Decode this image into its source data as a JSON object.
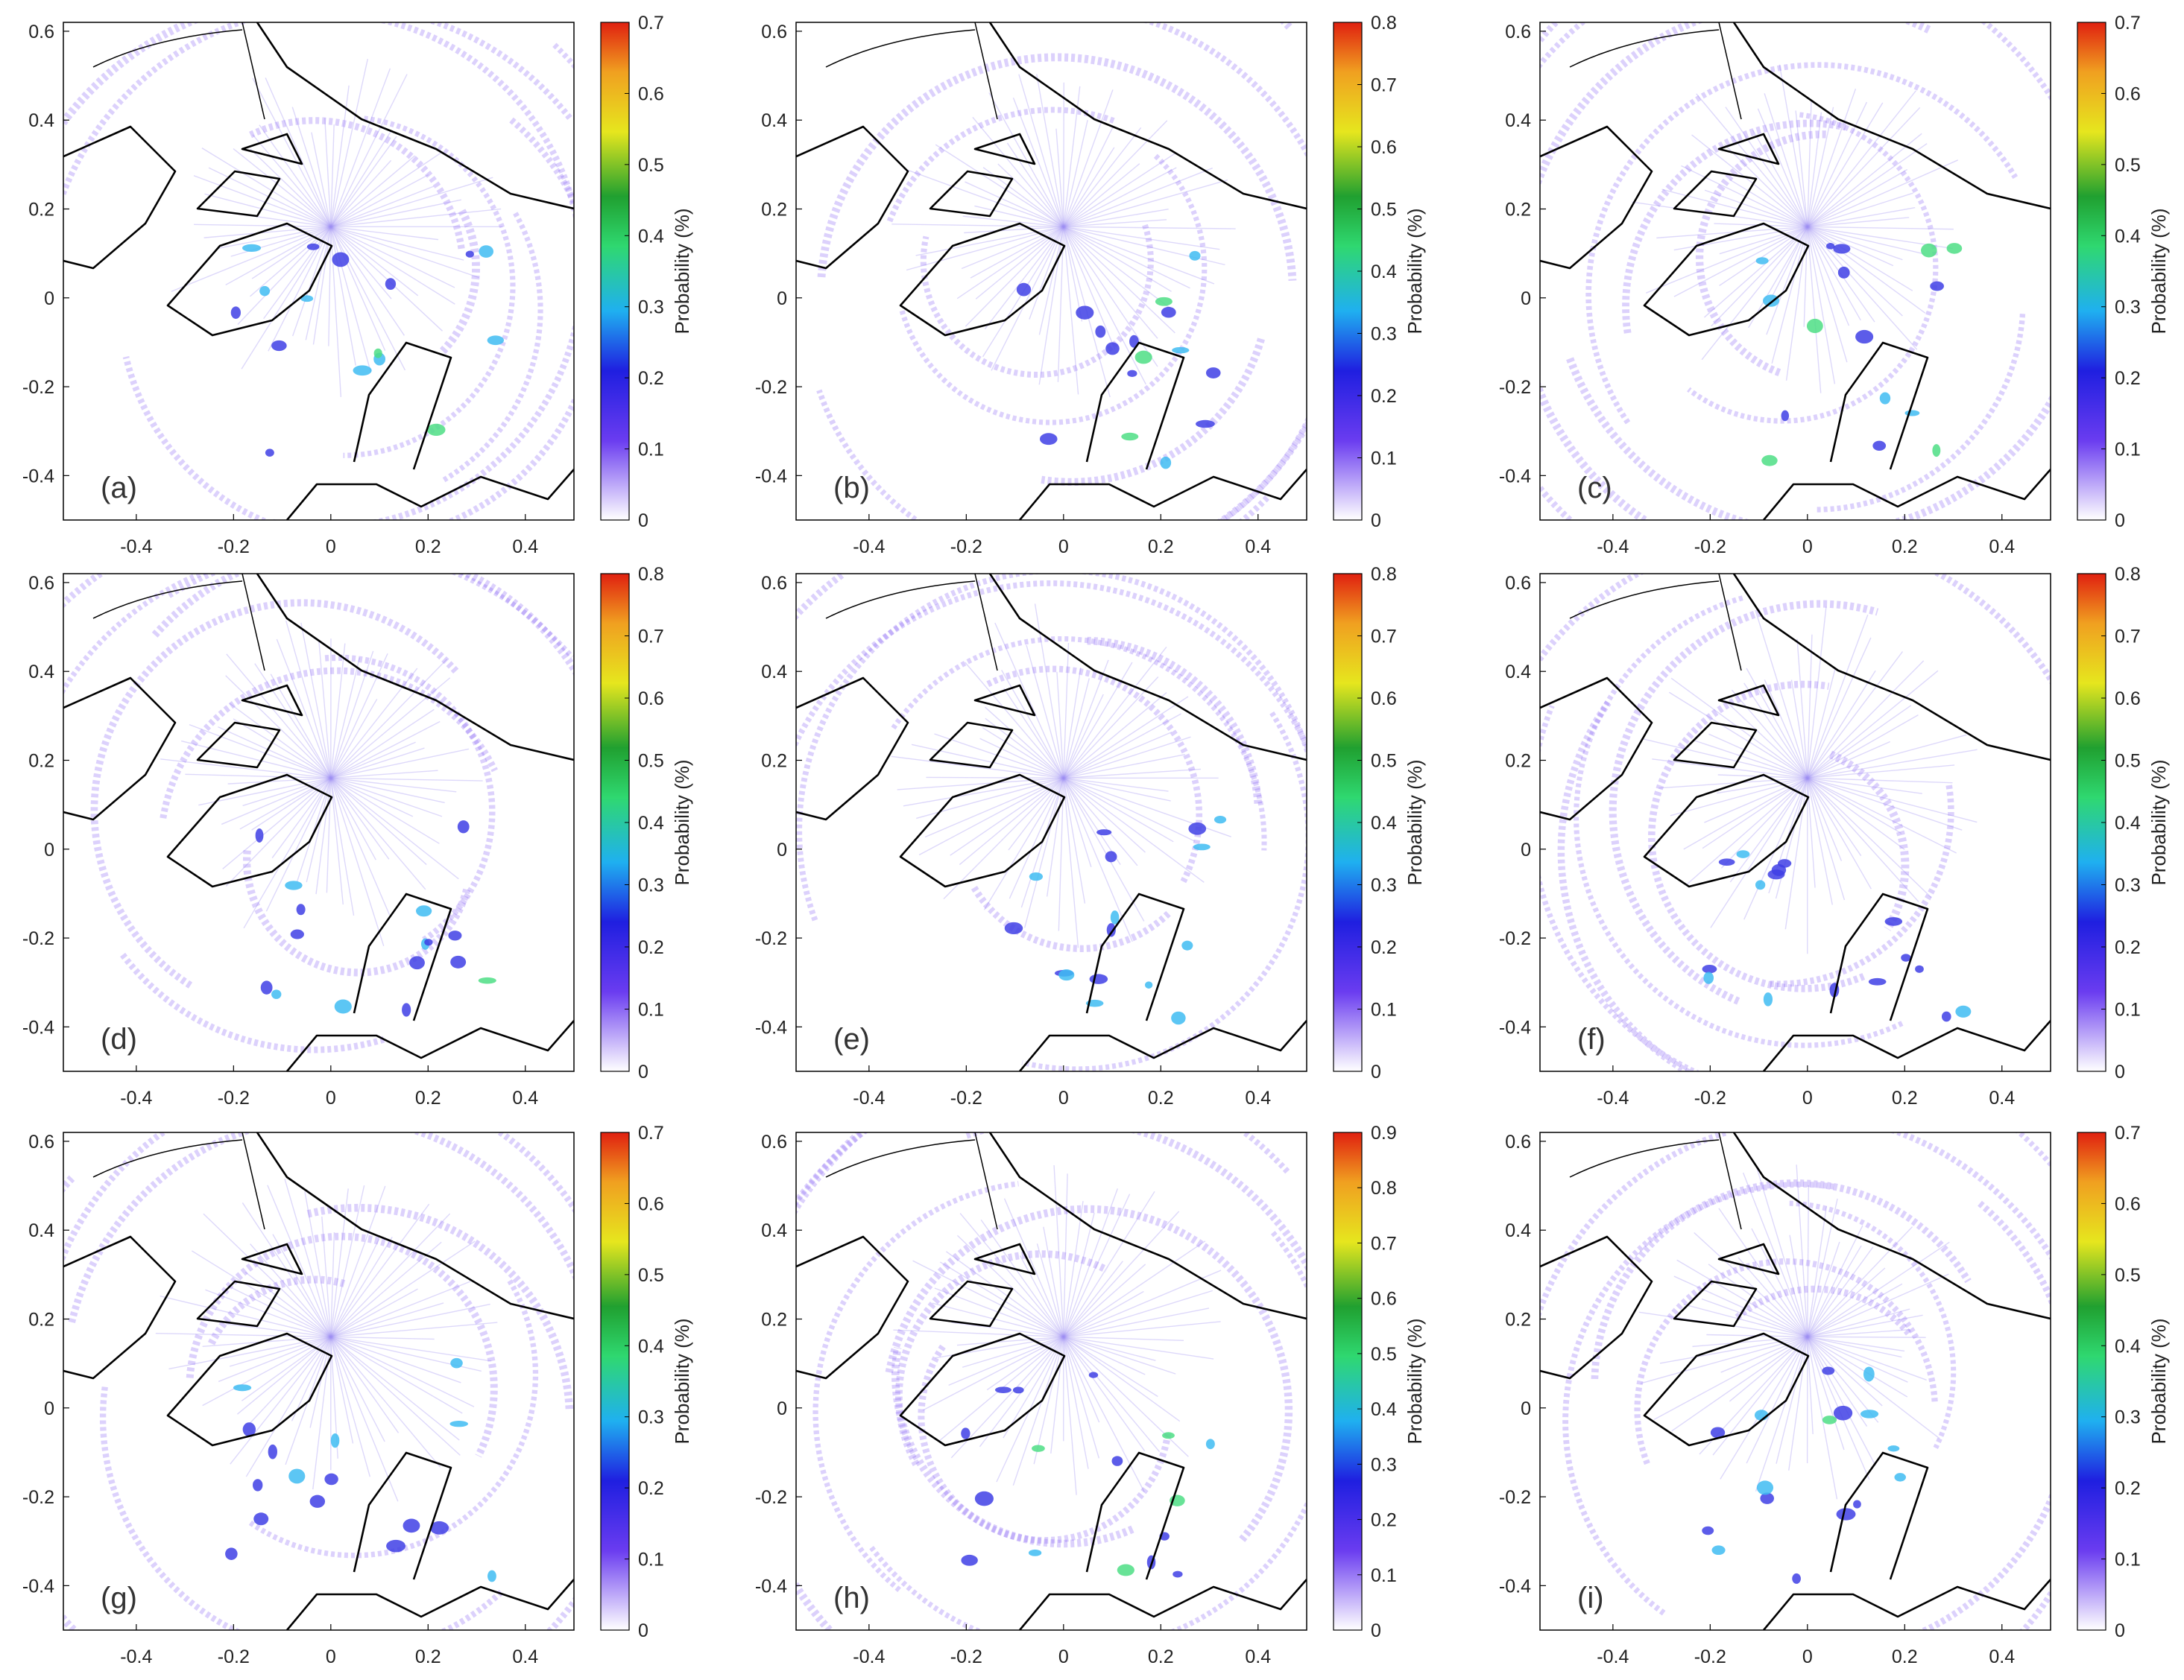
{
  "figure": {
    "colorbar_label": "Probability (%)",
    "palette": [
      "#ffffff",
      "#6a3cf0",
      "#1f1fe0",
      "#1fb0f0",
      "#2fd870",
      "#20a030",
      "#e6e61e",
      "#f0a020",
      "#e02010"
    ]
  },
  "chart_data": [
    {
      "type": "heatmap",
      "panel_label": "(a)",
      "x_ticks": [
        -0.4,
        -0.2,
        0,
        0.2,
        0.4
      ],
      "y_ticks": [
        -0.4,
        -0.2,
        0,
        0.2,
        0.4,
        0.6
      ],
      "xlim": [
        -0.55,
        0.5
      ],
      "ylim": [
        -0.5,
        0.62
      ],
      "colorbar_ticks": [
        0,
        0.1,
        0.2,
        0.3,
        0.4,
        0.5,
        0.6,
        0.7
      ],
      "colorbar_range": [
        0,
        0.7
      ],
      "colorbar_label": "Probability (%)"
    },
    {
      "type": "heatmap",
      "panel_label": "(b)",
      "x_ticks": [
        -0.4,
        -0.2,
        0,
        0.2,
        0.4
      ],
      "y_ticks": [
        -0.4,
        -0.2,
        0,
        0.2,
        0.4,
        0.6
      ],
      "xlim": [
        -0.55,
        0.5
      ],
      "ylim": [
        -0.5,
        0.62
      ],
      "colorbar_ticks": [
        0,
        0.1,
        0.2,
        0.3,
        0.4,
        0.5,
        0.6,
        0.7,
        0.8
      ],
      "colorbar_range": [
        0,
        0.8
      ],
      "colorbar_label": "Probability (%)"
    },
    {
      "type": "heatmap",
      "panel_label": "(c)",
      "x_ticks": [
        -0.4,
        -0.2,
        0,
        0.2,
        0.4
      ],
      "y_ticks": [
        -0.4,
        -0.2,
        0,
        0.2,
        0.4,
        0.6
      ],
      "xlim": [
        -0.55,
        0.5
      ],
      "ylim": [
        -0.5,
        0.62
      ],
      "colorbar_ticks": [
        0,
        0.1,
        0.2,
        0.3,
        0.4,
        0.5,
        0.6,
        0.7
      ],
      "colorbar_range": [
        0,
        0.7
      ],
      "colorbar_label": "Probability (%)"
    },
    {
      "type": "heatmap",
      "panel_label": "(d)",
      "x_ticks": [
        -0.4,
        -0.2,
        0,
        0.2,
        0.4
      ],
      "y_ticks": [
        -0.4,
        -0.2,
        0,
        0.2,
        0.4,
        0.6
      ],
      "xlim": [
        -0.55,
        0.5
      ],
      "ylim": [
        -0.5,
        0.62
      ],
      "colorbar_ticks": [
        0,
        0.1,
        0.2,
        0.3,
        0.4,
        0.5,
        0.6,
        0.7,
        0.8
      ],
      "colorbar_range": [
        0,
        0.8
      ],
      "colorbar_label": "Probability (%)"
    },
    {
      "type": "heatmap",
      "panel_label": "(e)",
      "x_ticks": [
        -0.4,
        -0.2,
        0,
        0.2,
        0.4
      ],
      "y_ticks": [
        -0.4,
        -0.2,
        0,
        0.2,
        0.4,
        0.6
      ],
      "xlim": [
        -0.55,
        0.5
      ],
      "ylim": [
        -0.5,
        0.62
      ],
      "colorbar_ticks": [
        0,
        0.1,
        0.2,
        0.3,
        0.4,
        0.5,
        0.6,
        0.7,
        0.8
      ],
      "colorbar_range": [
        0,
        0.8
      ],
      "colorbar_label": "Probability (%)"
    },
    {
      "type": "heatmap",
      "panel_label": "(f)",
      "x_ticks": [
        -0.4,
        -0.2,
        0,
        0.2,
        0.4
      ],
      "y_ticks": [
        -0.4,
        -0.2,
        0,
        0.2,
        0.4,
        0.6
      ],
      "xlim": [
        -0.55,
        0.5
      ],
      "ylim": [
        -0.5,
        0.62
      ],
      "colorbar_ticks": [
        0,
        0.1,
        0.2,
        0.3,
        0.4,
        0.5,
        0.6,
        0.7,
        0.8
      ],
      "colorbar_range": [
        0,
        0.8
      ],
      "colorbar_label": "Probability (%)"
    },
    {
      "type": "heatmap",
      "panel_label": "(g)",
      "x_ticks": [
        -0.4,
        -0.2,
        0,
        0.2,
        0.4
      ],
      "y_ticks": [
        -0.4,
        -0.2,
        0,
        0.2,
        0.4,
        0.6
      ],
      "xlim": [
        -0.55,
        0.5
      ],
      "ylim": [
        -0.5,
        0.62
      ],
      "colorbar_ticks": [
        0,
        0.1,
        0.2,
        0.3,
        0.4,
        0.5,
        0.6,
        0.7
      ],
      "colorbar_range": [
        0,
        0.7
      ],
      "colorbar_label": "Probability (%)"
    },
    {
      "type": "heatmap",
      "panel_label": "(h)",
      "x_ticks": [
        -0.4,
        -0.2,
        0,
        0.2,
        0.4
      ],
      "y_ticks": [
        -0.4,
        -0.2,
        0,
        0.2,
        0.4,
        0.6
      ],
      "xlim": [
        -0.55,
        0.5
      ],
      "ylim": [
        -0.5,
        0.62
      ],
      "colorbar_ticks": [
        0,
        0.1,
        0.2,
        0.3,
        0.4,
        0.5,
        0.6,
        0.7,
        0.8,
        0.9
      ],
      "colorbar_range": [
        0,
        0.9
      ],
      "colorbar_label": "Probability (%)"
    },
    {
      "type": "heatmap",
      "panel_label": "(i)",
      "x_ticks": [
        -0.4,
        -0.2,
        0,
        0.2,
        0.4
      ],
      "y_ticks": [
        -0.4,
        -0.2,
        0,
        0.2,
        0.4,
        0.6
      ],
      "xlim": [
        -0.55,
        0.5
      ],
      "ylim": [
        -0.5,
        0.62
      ],
      "colorbar_ticks": [
        0,
        0.1,
        0.2,
        0.3,
        0.4,
        0.5,
        0.6,
        0.7
      ],
      "colorbar_range": [
        0,
        0.7
      ],
      "colorbar_label": "Probability (%)"
    }
  ]
}
